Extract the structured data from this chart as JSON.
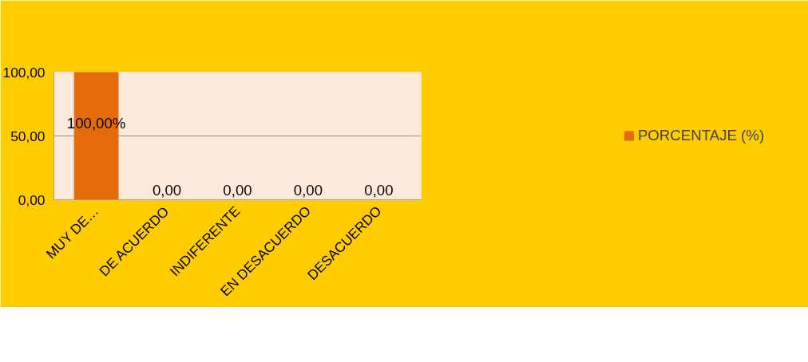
{
  "chart_data": {
    "type": "bar",
    "categories": [
      "MUY DE…",
      "DE ACUERDO",
      "INDIFERENTE",
      "EN DESACUERDO",
      "DESACUERDO"
    ],
    "series": [
      {
        "name": "PORCENTAJE (%)",
        "color": "#e46c0a",
        "values": [
          100,
          0,
          0,
          0,
          0
        ],
        "value_labels": [
          "100,00%",
          "0,00",
          "0,00",
          "0,00",
          "0,00"
        ]
      }
    ],
    "ylim": [
      0,
      100
    ],
    "yticks": [
      {
        "value": 0,
        "label": "0,00"
      },
      {
        "value": 50,
        "label": "50,00"
      },
      {
        "value": 100,
        "label": "100,00"
      }
    ],
    "grid": "y",
    "legend": "right"
  }
}
